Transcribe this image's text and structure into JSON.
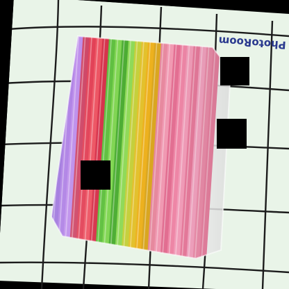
{
  "image": {
    "watermark_text": "PhotoRoom",
    "colors": {
      "background_border": "#000000",
      "paper": "#e9f4e8",
      "grid_lines": "#1c1c1c",
      "watermark": "#2b3a8f",
      "occluder": "#000000"
    },
    "straws": {
      "count": 24,
      "palette": [
        "#8b5ad6",
        "#a06ae0",
        "#b47ee8",
        "#c93357",
        "#e0334a",
        "#ec4c5b",
        "#d52a44",
        "#5bbf3a",
        "#7ed64e",
        "#49ad2f",
        "#8fdc56",
        "#c7d23a",
        "#e6c32b",
        "#f0b31d",
        "#dca81f",
        "#e98aa0",
        "#f29ab3",
        "#e36f92",
        "#ee86a6",
        "#f19cb8",
        "#e67a9b",
        "#f2a2bf",
        "#eb8daa",
        "#e882a1"
      ]
    },
    "occluders": 3
  }
}
